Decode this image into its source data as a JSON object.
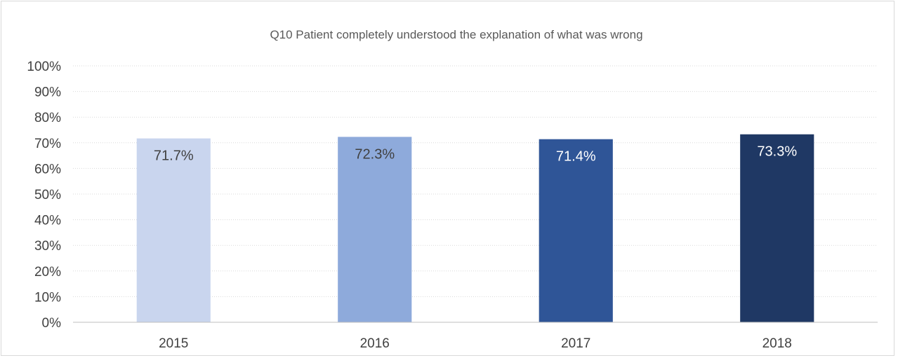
{
  "chart_data": {
    "type": "bar",
    "title": "Q10 Patient completely understood the explanation of what was wrong",
    "categories": [
      "2015",
      "2016",
      "2017",
      "2018"
    ],
    "values": [
      71.7,
      72.3,
      71.4,
      73.3
    ],
    "value_labels": [
      "71.7%",
      "72.3%",
      "71.4%",
      "73.3%"
    ],
    "bar_colors": [
      "#c9d5ee",
      "#8eaadb",
      "#2f5597",
      "#1f3864"
    ],
    "label_colors": [
      "#404040",
      "#404040",
      "#ffffff",
      "#ffffff"
    ],
    "ylim": [
      0,
      100
    ],
    "yticks": [
      0,
      10,
      20,
      30,
      40,
      50,
      60,
      70,
      80,
      90,
      100
    ],
    "ytick_labels": [
      "0%",
      "10%",
      "20%",
      "30%",
      "40%",
      "50%",
      "60%",
      "70%",
      "80%",
      "90%",
      "100%"
    ],
    "grid": true,
    "legend": "none"
  }
}
